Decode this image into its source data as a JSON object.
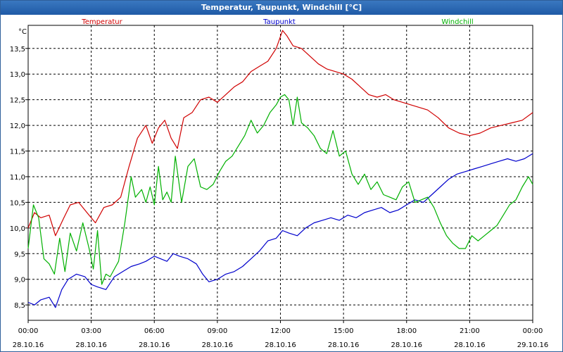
{
  "window": {
    "title": "Temperatur, Taupunkt, Windchill [°C]"
  },
  "chart_data": {
    "type": "line",
    "ylabel": "°C",
    "ylim": [
      8.2,
      13.95
    ],
    "xlim": [
      0,
      24
    ],
    "grid": true,
    "yticks": [
      "8,5",
      "9,0",
      "9,5",
      "10,0",
      "10,5",
      "11,0",
      "11,5",
      "12,0",
      "12,5",
      "13,0",
      "13,5"
    ],
    "ytick_values": [
      8.5,
      9.0,
      9.5,
      10.0,
      10.5,
      11.0,
      11.5,
      12.0,
      12.5,
      13.0,
      13.5
    ],
    "xticks": [
      {
        "time": "00:00",
        "date": "28.10.16"
      },
      {
        "time": "03:00",
        "date": "28.10.16"
      },
      {
        "time": "06:00",
        "date": "28.10.16"
      },
      {
        "time": "09:00",
        "date": "28.10.16"
      },
      {
        "time": "12:00",
        "date": "28.10.16"
      },
      {
        "time": "15:00",
        "date": "28.10.16"
      },
      {
        "time": "18:00",
        "date": "28.10.16"
      },
      {
        "time": "21:00",
        "date": "28.10.16"
      },
      {
        "time": "00:00",
        "date": "29.10.16"
      }
    ],
    "xtick_hours": [
      0,
      3,
      6,
      9,
      12,
      15,
      18,
      21,
      24
    ],
    "legend_placement": "top",
    "series": [
      {
        "name": "Temperatur",
        "color": "#d00000",
        "x": [
          0,
          0.3,
          0.6,
          1.0,
          1.3,
          1.7,
          2.0,
          2.4,
          2.8,
          3.0,
          3.2,
          3.6,
          4.0,
          4.4,
          4.8,
          5.2,
          5.6,
          5.9,
          6.2,
          6.5,
          6.8,
          7.1,
          7.4,
          7.8,
          8.2,
          8.6,
          9.0,
          9.4,
          9.8,
          10.2,
          10.6,
          11.0,
          11.4,
          11.8,
          12.1,
          12.3,
          12.6,
          13.0,
          13.4,
          13.8,
          14.2,
          14.6,
          15.0,
          15.4,
          15.8,
          16.2,
          16.6,
          17.0,
          17.4,
          17.8,
          18.2,
          18.6,
          19.0,
          19.5,
          20.0,
          20.5,
          21.0,
          21.5,
          22.0,
          22.5,
          23.0,
          23.5,
          24.0
        ],
        "values": [
          10.0,
          10.3,
          10.2,
          10.25,
          9.85,
          10.2,
          10.45,
          10.5,
          10.3,
          10.2,
          10.1,
          10.4,
          10.45,
          10.6,
          11.2,
          11.75,
          12.0,
          11.65,
          11.95,
          12.1,
          11.75,
          11.55,
          12.15,
          12.25,
          12.5,
          12.55,
          12.45,
          12.6,
          12.75,
          12.85,
          13.05,
          13.15,
          13.25,
          13.5,
          13.85,
          13.75,
          13.55,
          13.5,
          13.35,
          13.2,
          13.1,
          13.05,
          13.0,
          12.9,
          12.75,
          12.6,
          12.55,
          12.6,
          12.5,
          12.45,
          12.4,
          12.35,
          12.3,
          12.15,
          11.95,
          11.85,
          11.8,
          11.85,
          11.95,
          12.0,
          12.05,
          12.1,
          12.25
        ]
      },
      {
        "name": "Taupunkt",
        "color": "#0000cc",
        "x": [
          0,
          0.3,
          0.6,
          1.0,
          1.3,
          1.6,
          1.9,
          2.3,
          2.7,
          3.0,
          3.3,
          3.7,
          4.1,
          4.5,
          4.9,
          5.3,
          5.6,
          6.0,
          6.3,
          6.6,
          6.9,
          7.2,
          7.6,
          8.0,
          8.3,
          8.6,
          9.0,
          9.4,
          9.8,
          10.2,
          10.6,
          11.0,
          11.4,
          11.8,
          12.1,
          12.4,
          12.8,
          13.2,
          13.6,
          14.0,
          14.4,
          14.8,
          15.2,
          15.6,
          16.0,
          16.4,
          16.8,
          17.2,
          17.6,
          18.0,
          18.4,
          18.8,
          19.2,
          19.6,
          20.0,
          20.4,
          20.8,
          21.2,
          21.6,
          22.0,
          22.4,
          22.8,
          23.2,
          23.6,
          24.0
        ],
        "values": [
          8.55,
          8.5,
          8.6,
          8.65,
          8.45,
          8.8,
          9.0,
          9.1,
          9.05,
          8.9,
          8.85,
          8.8,
          9.05,
          9.15,
          9.25,
          9.3,
          9.35,
          9.45,
          9.4,
          9.35,
          9.5,
          9.45,
          9.4,
          9.3,
          9.1,
          8.95,
          9.0,
          9.1,
          9.15,
          9.25,
          9.4,
          9.55,
          9.75,
          9.8,
          9.95,
          9.9,
          9.85,
          10.0,
          10.1,
          10.15,
          10.2,
          10.15,
          10.25,
          10.2,
          10.3,
          10.35,
          10.4,
          10.3,
          10.35,
          10.45,
          10.55,
          10.5,
          10.65,
          10.8,
          10.95,
          11.05,
          11.1,
          11.15,
          11.2,
          11.25,
          11.3,
          11.35,
          11.3,
          11.35,
          11.45
        ]
      },
      {
        "name": "Windchill",
        "color": "#00b000",
        "x": [
          0,
          0.25,
          0.5,
          0.75,
          1.0,
          1.25,
          1.5,
          1.75,
          2.0,
          2.3,
          2.6,
          2.9,
          3.1,
          3.3,
          3.5,
          3.7,
          3.9,
          4.1,
          4.3,
          4.6,
          4.9,
          5.1,
          5.4,
          5.6,
          5.8,
          6.0,
          6.2,
          6.4,
          6.6,
          6.8,
          7.0,
          7.3,
          7.6,
          7.9,
          8.2,
          8.5,
          8.8,
          9.1,
          9.4,
          9.7,
          10.0,
          10.3,
          10.6,
          10.9,
          11.2,
          11.5,
          11.8,
          12.0,
          12.2,
          12.4,
          12.6,
          12.8,
          13.0,
          13.3,
          13.6,
          13.9,
          14.2,
          14.5,
          14.8,
          15.1,
          15.4,
          15.7,
          16.0,
          16.3,
          16.6,
          16.9,
          17.2,
          17.5,
          17.8,
          18.1,
          18.4,
          18.7,
          19.0,
          19.3,
          19.6,
          19.9,
          20.2,
          20.5,
          20.8,
          21.1,
          21.4,
          21.7,
          22.0,
          22.3,
          22.6,
          22.9,
          23.2,
          23.5,
          23.8,
          24.0
        ],
        "values": [
          9.6,
          10.45,
          10.2,
          9.4,
          9.3,
          9.1,
          9.8,
          9.15,
          9.9,
          9.55,
          10.1,
          9.6,
          9.2,
          9.95,
          8.9,
          9.1,
          9.05,
          9.2,
          9.35,
          10.1,
          11.0,
          10.6,
          10.75,
          10.5,
          10.8,
          10.45,
          11.2,
          10.55,
          10.7,
          10.5,
          11.4,
          10.5,
          11.2,
          11.35,
          10.8,
          10.75,
          10.85,
          11.1,
          11.3,
          11.4,
          11.6,
          11.8,
          12.1,
          11.85,
          12.0,
          12.25,
          12.4,
          12.55,
          12.6,
          12.5,
          12.0,
          12.55,
          12.05,
          11.95,
          11.8,
          11.55,
          11.45,
          11.9,
          11.4,
          11.5,
          11.05,
          10.85,
          11.05,
          10.75,
          10.9,
          10.65,
          10.6,
          10.55,
          10.8,
          10.9,
          10.5,
          10.55,
          10.6,
          10.4,
          10.1,
          9.85,
          9.7,
          9.6,
          9.6,
          9.85,
          9.75,
          9.85,
          9.95,
          10.05,
          10.25,
          10.45,
          10.55,
          10.8,
          11.0,
          10.85
        ]
      }
    ]
  }
}
